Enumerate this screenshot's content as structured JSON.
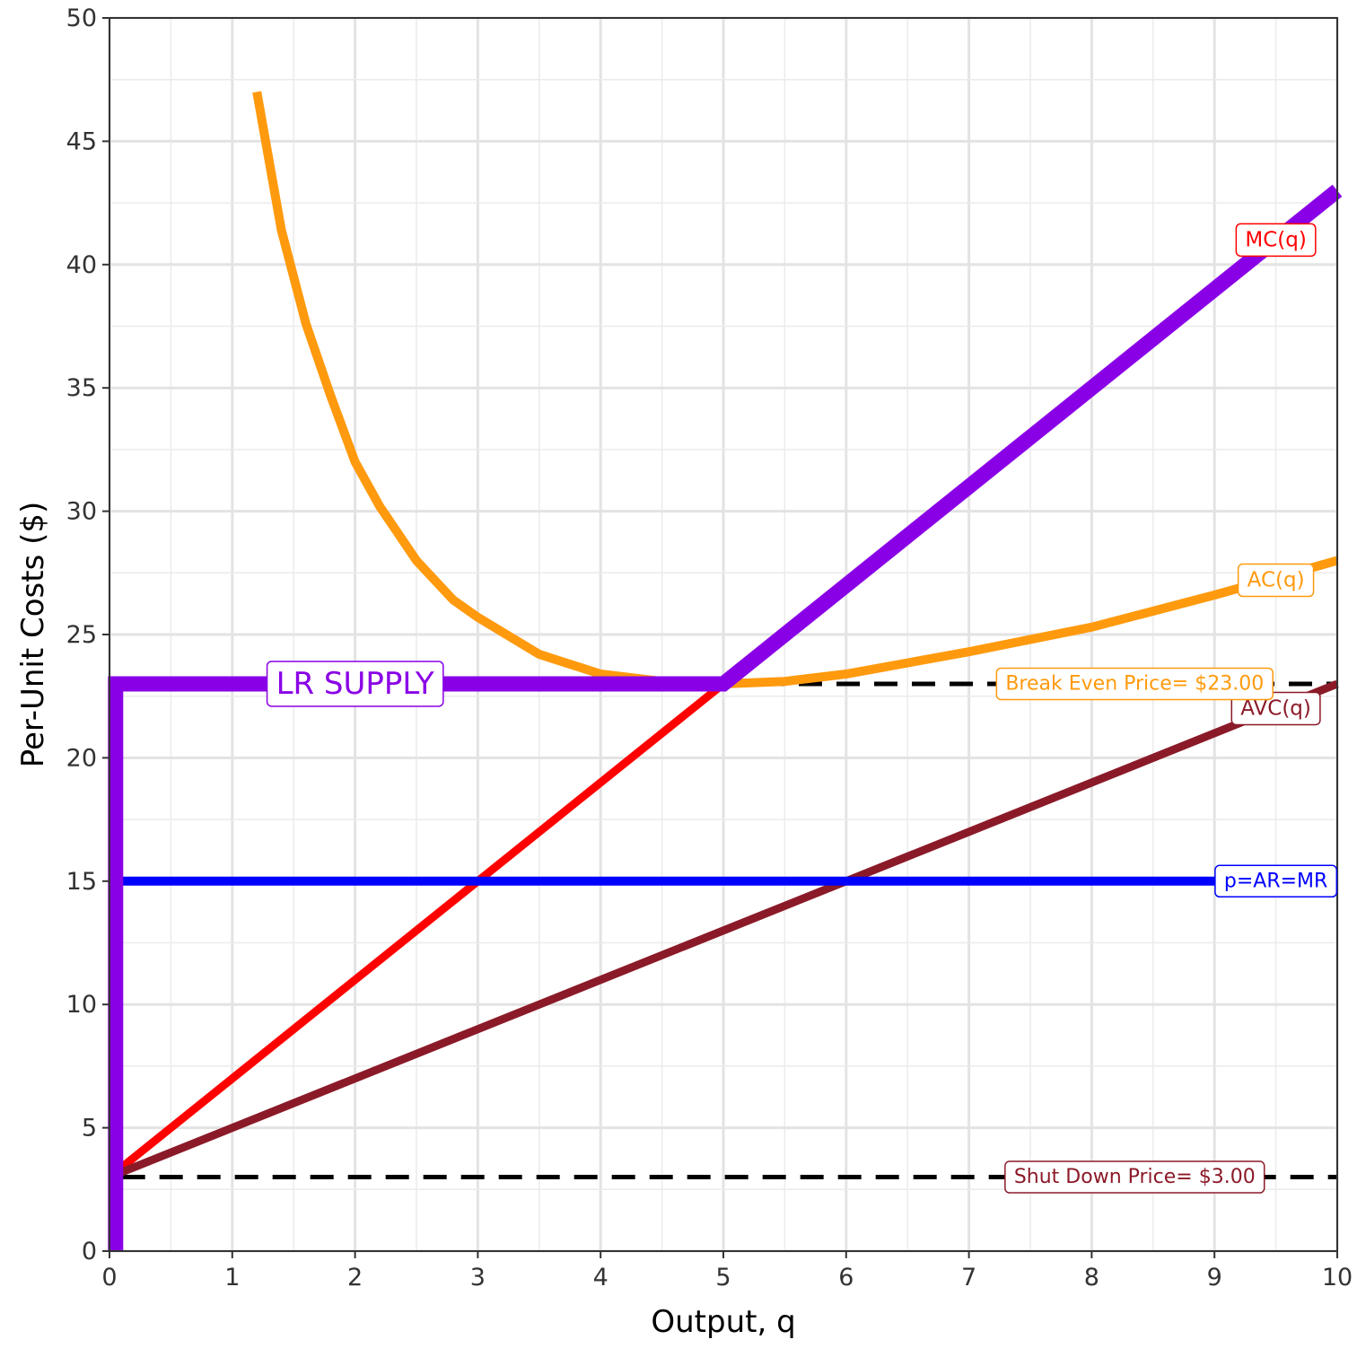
{
  "chart_data": {
    "type": "line",
    "xlabel": "Output, q",
    "ylabel": "Per-Unit Costs ($)",
    "xlim": [
      0,
      10
    ],
    "ylim": [
      0,
      50
    ],
    "x_ticks": [
      0,
      1,
      2,
      3,
      4,
      5,
      6,
      7,
      8,
      9,
      10
    ],
    "y_ticks": [
      0,
      5,
      10,
      15,
      20,
      25,
      30,
      35,
      40,
      45,
      50
    ],
    "grid": true,
    "series": [
      {
        "name": "AC(q)",
        "color": "#ff9a0e",
        "x": [
          1.2,
          1.4,
          1.6,
          1.8,
          2.0,
          2.2,
          2.5,
          2.8,
          3.0,
          3.5,
          4.0,
          4.5,
          5.0,
          5.5,
          6.0,
          7.0,
          8.0,
          9.0,
          10.0
        ],
        "y": [
          47.0,
          41.4,
          37.6,
          34.7,
          32.0,
          30.2,
          28.0,
          26.4,
          25.7,
          24.2,
          23.4,
          23.1,
          23.0,
          23.1,
          23.4,
          24.3,
          25.3,
          26.6,
          28.0
        ]
      },
      {
        "name": "MC(q)",
        "color": "#ff0000",
        "x": [
          0.1,
          5.0
        ],
        "y": [
          3.4,
          23.0
        ]
      },
      {
        "name": "AVC(q)",
        "color": "#8b1a28",
        "x": [
          0.1,
          10.0
        ],
        "y": [
          3.2,
          23.0
        ]
      },
      {
        "name": "p=AR=MR",
        "color": "#0000ff",
        "x": [
          0.1,
          10.0
        ],
        "y": [
          15.0,
          15.0
        ]
      },
      {
        "name": "LR SUPPLY",
        "color": "#8a00e6",
        "x": [
          0.05,
          0.05,
          5.0,
          10.0
        ],
        "y": [
          0.0,
          23.0,
          23.0,
          43.0
        ]
      }
    ],
    "reference_lines": [
      {
        "label": "Break Even Price= $23.00",
        "y": 23.0,
        "x_start": 5.0,
        "x_end": 10.0,
        "label_color": "#ff9a0e"
      },
      {
        "label": "Shut Down Price= $3.00",
        "y": 3.0,
        "x_start": 0.1,
        "x_end": 10.0,
        "label_color": "#8b1a28"
      }
    ],
    "labels": [
      {
        "text": "MC(q)",
        "x": 9.5,
        "y": 41.0,
        "color": "#ff0000",
        "size": 23
      },
      {
        "text": "AC(q)",
        "x": 9.5,
        "y": 27.2,
        "color": "#ff9a0e",
        "size": 23
      },
      {
        "text": "AVC(q)",
        "x": 9.5,
        "y": 22.0,
        "color": "#8b1a28",
        "size": 23
      },
      {
        "text": "p=AR=MR",
        "x": 9.5,
        "y": 15.0,
        "color": "#0000ff",
        "size": 22
      },
      {
        "text": "LR SUPPLY",
        "x": 2.0,
        "y": 23.0,
        "color": "#8a00e6",
        "size": 34
      },
      {
        "text": "Break Even Price= $23.00",
        "x": 8.35,
        "y": 23.0,
        "color": "#ff9a0e",
        "size": 22
      },
      {
        "text": "Shut Down Price= $3.00",
        "x": 8.35,
        "y": 3.0,
        "color": "#8b1a28",
        "size": 22
      }
    ]
  }
}
